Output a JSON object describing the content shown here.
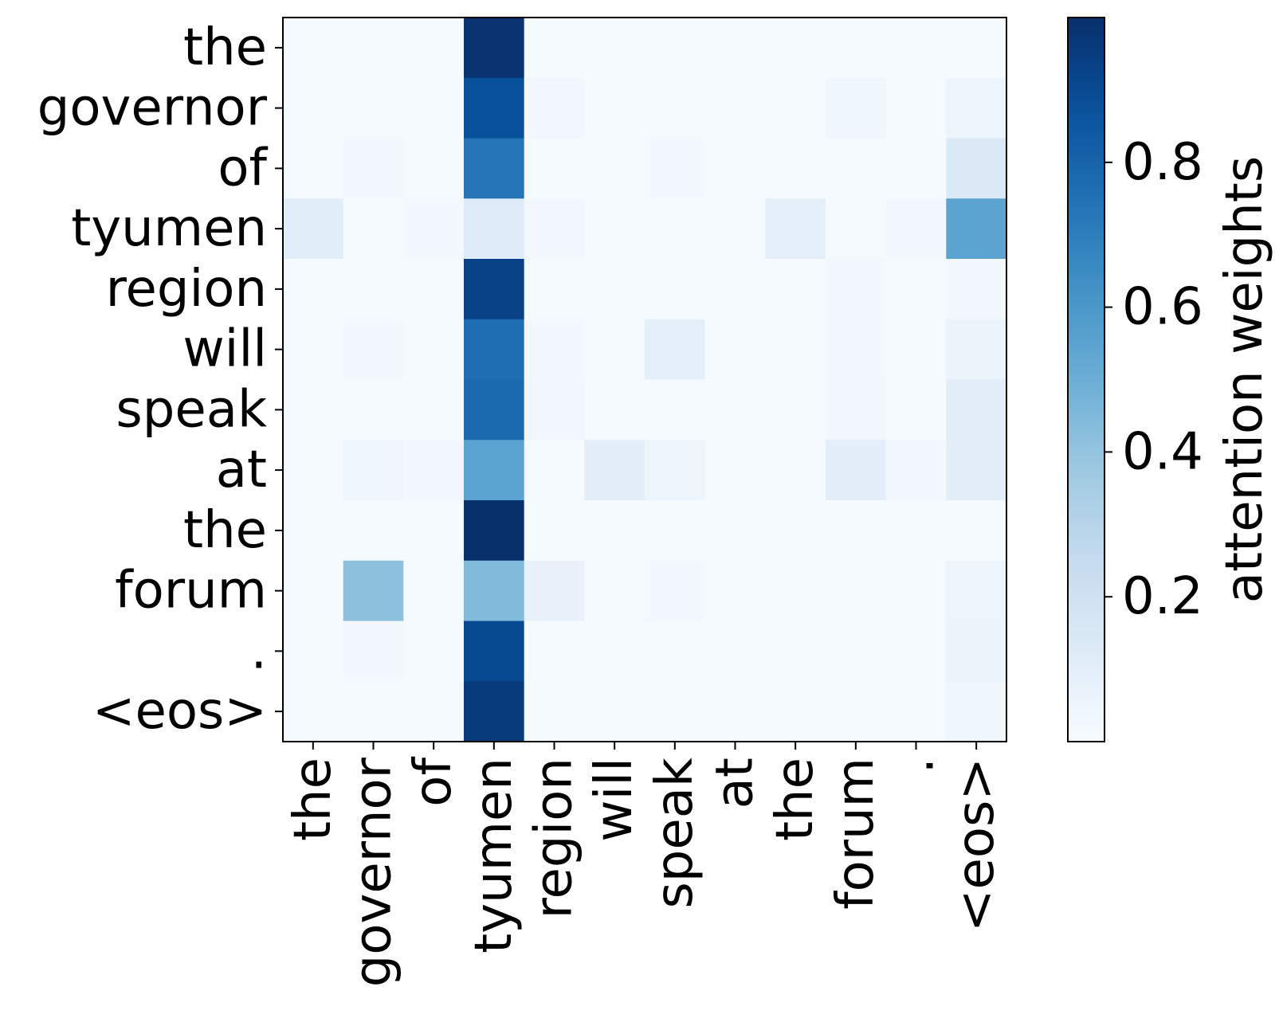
{
  "chart_data": {
    "type": "heatmap",
    "colormap": "Blues",
    "x_labels": [
      "the",
      "governor",
      "of",
      "tyumen",
      "region",
      "will",
      "speak",
      "at",
      "the",
      "forum",
      ".",
      "<eos>"
    ],
    "y_labels": [
      "the",
      "governor",
      "of",
      "tyumen",
      "region",
      "will",
      "speak",
      "at",
      "the",
      "forum",
      ".",
      "<eos>"
    ],
    "values": [
      [
        0.01,
        0.01,
        0.01,
        0.99,
        0.01,
        0.01,
        0.01,
        0.01,
        0.01,
        0.01,
        0.01,
        0.01
      ],
      [
        0.01,
        0.01,
        0.01,
        0.88,
        0.03,
        0.01,
        0.01,
        0.01,
        0.01,
        0.04,
        0.01,
        0.05
      ],
      [
        0.01,
        0.02,
        0.01,
        0.74,
        0.01,
        0.01,
        0.02,
        0.01,
        0.01,
        0.01,
        0.01,
        0.14
      ],
      [
        0.11,
        0.01,
        0.02,
        0.13,
        0.03,
        0.01,
        0.01,
        0.01,
        0.09,
        0.01,
        0.03,
        0.55
      ],
      [
        0.01,
        0.01,
        0.01,
        0.93,
        0.01,
        0.01,
        0.01,
        0.01,
        0.01,
        0.02,
        0.01,
        0.02
      ],
      [
        0.01,
        0.02,
        0.01,
        0.76,
        0.02,
        0.01,
        0.09,
        0.01,
        0.01,
        0.02,
        0.01,
        0.06
      ],
      [
        0.01,
        0.01,
        0.01,
        0.78,
        0.03,
        0.01,
        0.01,
        0.01,
        0.01,
        0.03,
        0.01,
        0.1
      ],
      [
        0.01,
        0.04,
        0.02,
        0.55,
        0.01,
        0.1,
        0.05,
        0.01,
        0.01,
        0.1,
        0.02,
        0.1
      ],
      [
        0.01,
        0.01,
        0.01,
        1.0,
        0.01,
        0.01,
        0.01,
        0.01,
        0.01,
        0.01,
        0.01,
        0.01
      ],
      [
        0.01,
        0.42,
        0.01,
        0.44,
        0.07,
        0.01,
        0.02,
        0.01,
        0.01,
        0.01,
        0.01,
        0.05
      ],
      [
        0.01,
        0.02,
        0.01,
        0.9,
        0.01,
        0.01,
        0.01,
        0.01,
        0.01,
        0.01,
        0.01,
        0.06
      ],
      [
        0.01,
        0.01,
        0.01,
        0.96,
        0.01,
        0.01,
        0.01,
        0.01,
        0.01,
        0.01,
        0.01,
        0.04
      ]
    ],
    "colorbar": {
      "label": "attention weights",
      "range": [
        0.0,
        1.0
      ],
      "ticks": [
        0.2,
        0.4,
        0.6,
        0.8
      ],
      "tick_labels": [
        "0.2",
        "0.4",
        "0.6",
        "0.8"
      ]
    },
    "grid": false
  }
}
